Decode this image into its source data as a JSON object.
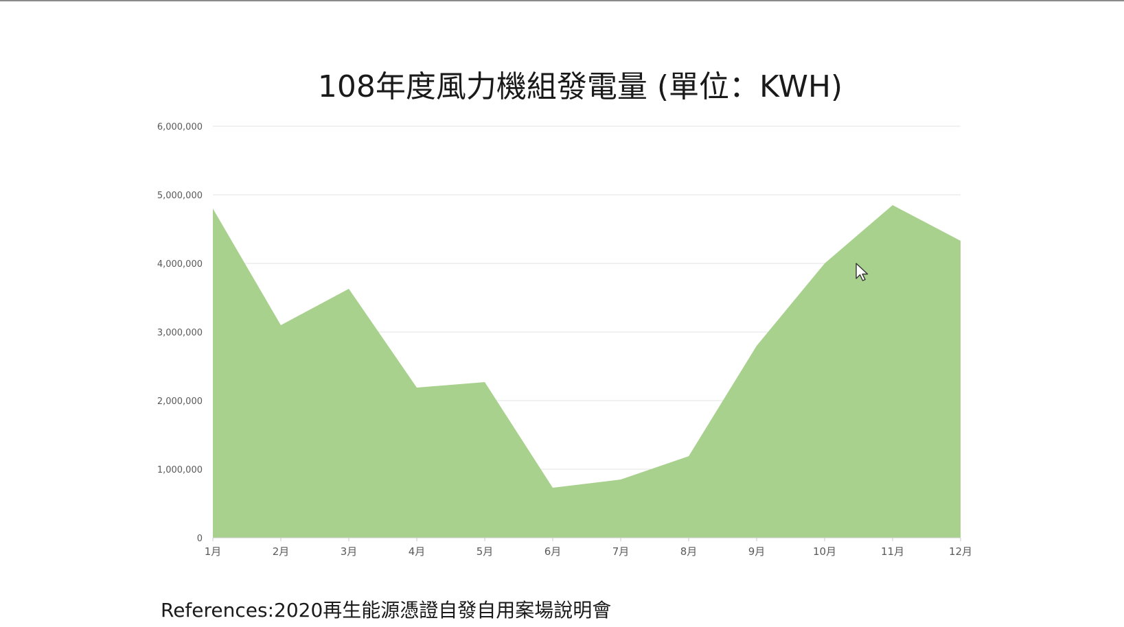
{
  "chart_data": {
    "type": "area",
    "title": "108年度風力機組發電量 (單位：KWH)",
    "xlabel": "",
    "ylabel": "",
    "categories": [
      "1月",
      "2月",
      "3月",
      "4月",
      "5月",
      "6月",
      "7月",
      "8月",
      "9月",
      "10月",
      "11月",
      "12月"
    ],
    "values": [
      4800000,
      3100000,
      3630000,
      2190000,
      2270000,
      730000,
      850000,
      1190000,
      2800000,
      4000000,
      4850000,
      4330000
    ],
    "ylim": [
      0,
      6000000
    ],
    "yticks": [
      "0",
      "1,000,000",
      "2,000,000",
      "3,000,000",
      "4,000,000",
      "5,000,000",
      "6,000,000"
    ],
    "grid": true,
    "fill_color": "#a9d18e"
  },
  "reference_text": "References:2020再生能源憑證自發自用案場說明會"
}
